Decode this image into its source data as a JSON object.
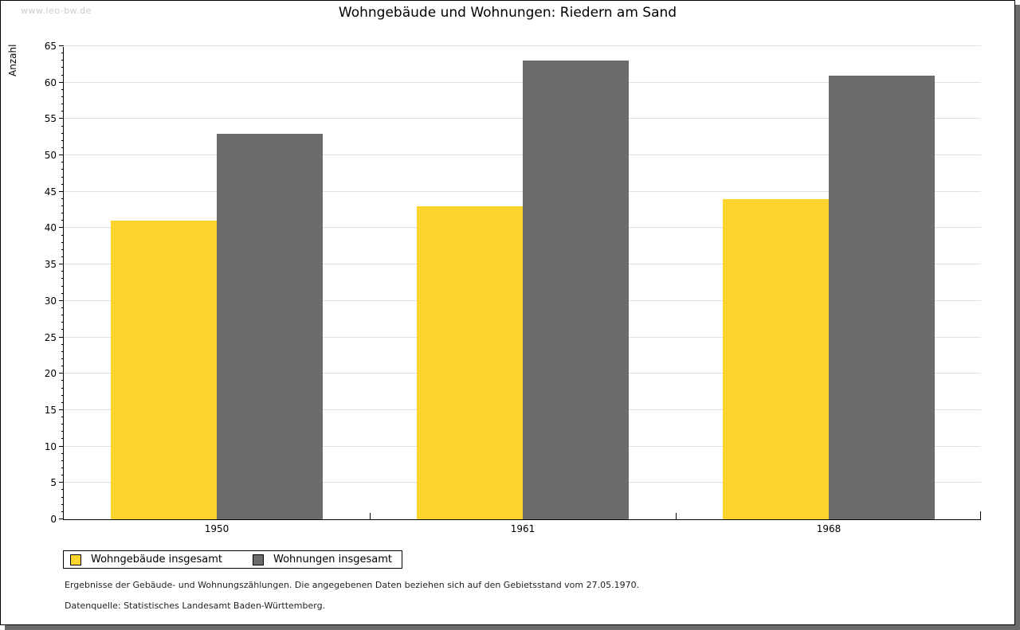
{
  "watermark": "www.leo-bw.de",
  "title": "Wohngebäude und Wohnungen: Riedern am Sand",
  "chart_data": {
    "type": "bar",
    "title": "Wohngebäude und Wohnungen: Riedern am Sand",
    "xlabel": "",
    "ylabel": "Anzahl",
    "categories": [
      "1950",
      "1961",
      "1968"
    ],
    "series": [
      {
        "name": "Wohngebäude insgesamt",
        "color": "#fdd32d",
        "values": [
          41,
          43,
          44
        ]
      },
      {
        "name": "Wohnungen insgesamt",
        "color": "#6b6b6b",
        "values": [
          53,
          63,
          61
        ]
      }
    ],
    "ylim": [
      0,
      65
    ],
    "ytick_step": 5,
    "yticks": [
      0,
      5,
      10,
      15,
      20,
      25,
      30,
      35,
      40,
      45,
      50,
      55,
      60,
      65
    ],
    "minor_tick_step": 1,
    "grid": true,
    "gridline_color": "#e0e0e0",
    "legend_position": "bottom-left"
  },
  "footer": {
    "line1": "Ergebnisse der Gebäude- und Wohnungszählungen. Die angegebenen Daten beziehen sich auf den Gebietsstand vom 27.05.1970.",
    "line2": "Datenquelle: Statistisches Landesamt Baden-Württemberg."
  }
}
